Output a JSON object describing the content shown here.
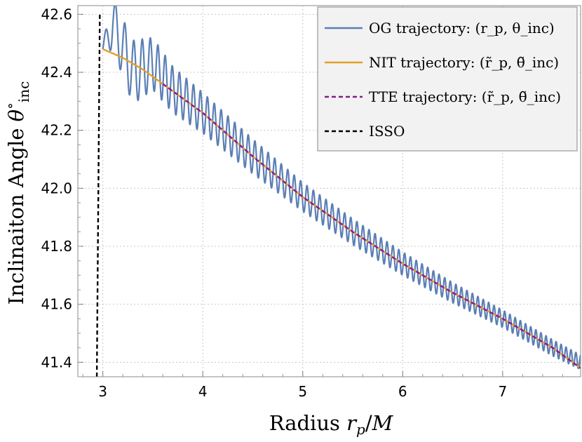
{
  "chart_data": {
    "type": "line",
    "xlabel": "Radius r_p/M",
    "ylabel": "Inclinaiton Angle θ°_inc",
    "xlim": [
      2.75,
      7.78
    ],
    "ylim": [
      41.35,
      42.63
    ],
    "x_ticks": [
      "3",
      "4",
      "5",
      "6",
      "7"
    ],
    "y_ticks": [
      "41.4",
      "41.6",
      "41.8",
      "42.0",
      "42.2",
      "42.4",
      "42.6"
    ],
    "grid": true,
    "legend_position": "top-right",
    "series": [
      {
        "name": "OG trajectory: (r_p, θ_inc)",
        "color": "#5b7fb5",
        "style": "oscillating",
        "x": [
          3.0,
          3.1,
          3.3,
          3.5,
          3.7,
          4.0,
          4.5,
          5.0,
          5.5,
          6.0,
          6.5,
          7.0,
          7.5,
          7.78
        ],
        "y": [
          42.48,
          42.57,
          42.4,
          42.43,
          42.34,
          42.26,
          42.11,
          41.97,
          41.85,
          41.74,
          41.64,
          41.55,
          41.45,
          41.4
        ],
        "oscillation_amplitude": [
          0.02,
          0.09,
          0.11,
          0.09,
          0.08,
          0.07,
          0.06,
          0.05,
          0.045,
          0.04,
          0.035,
          0.03,
          0.028,
          0.025
        ]
      },
      {
        "name": "NIT trajectory: (r̃_p, θ̃_inc)",
        "color": "#e39f2a",
        "x": [
          3.0,
          3.2,
          3.4,
          3.6,
          3.8,
          4.0,
          4.5,
          5.0,
          5.5,
          6.0,
          6.5,
          7.0,
          7.5,
          7.78
        ],
        "y": [
          42.48,
          42.45,
          42.41,
          42.36,
          42.31,
          42.26,
          42.11,
          41.97,
          41.85,
          41.74,
          41.64,
          41.55,
          41.45,
          41.38
        ]
      },
      {
        "name": "TTE trajectory: (r̃_p, θ̃_inc)",
        "color": "#8b1a8b",
        "dashed": true,
        "x": [
          3.6,
          3.8,
          4.0,
          4.5,
          5.0,
          5.5,
          6.0,
          6.5,
          7.0,
          7.5,
          7.78
        ],
        "y": [
          42.36,
          42.31,
          42.26,
          42.11,
          41.97,
          41.85,
          41.74,
          41.64,
          41.55,
          41.45,
          41.38
        ]
      },
      {
        "name": "ISSO",
        "color": "#000000",
        "dashed": true,
        "x": [
          2.94,
          2.97
        ],
        "y": [
          41.35,
          42.6
        ]
      }
    ]
  }
}
